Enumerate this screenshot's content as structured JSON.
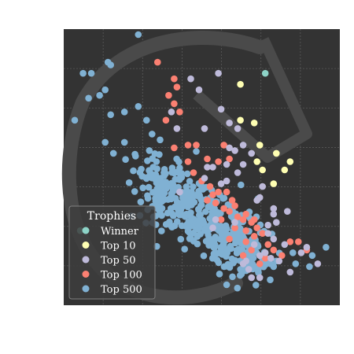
{
  "chart_data": {
    "type": "scatter",
    "title": "",
    "xlabel": "",
    "ylabel": "",
    "grid": true,
    "legend": {
      "title": "Trophies",
      "placement": "lower-left",
      "entries": [
        "Winner",
        "Top 10",
        "Top 50",
        "Top 100",
        "Top 500"
      ]
    },
    "colors": {
      "Winner": "#8dd3c7",
      "Top 10": "#ffffb3",
      "Top 50": "#bebada",
      "Top 100": "#fb8072",
      "Top 500": "#80b1d3",
      "background": "#333333",
      "grid": "#5a5a5a",
      "watermark": "#4a4a4a"
    },
    "series": [
      {
        "name": "Winner",
        "points": [
          [
            0.73,
            0.84
          ],
          [
            0.06,
            0.27
          ]
        ]
      },
      {
        "name": "Top 10",
        "points": [
          [
            0.64,
            0.8
          ],
          [
            0.69,
            0.66
          ],
          [
            0.71,
            0.58
          ],
          [
            0.64,
            0.67
          ],
          [
            0.7,
            0.52
          ],
          [
            0.72,
            0.49
          ],
          [
            0.76,
            0.44
          ],
          [
            0.77,
            0.55
          ],
          [
            0.8,
            0.49
          ],
          [
            0.82,
            0.52
          ]
        ]
      },
      {
        "name": "Top 50",
        "points": [
          [
            0.46,
            0.82
          ],
          [
            0.56,
            0.84
          ],
          [
            0.49,
            0.78
          ],
          [
            0.57,
            0.71
          ],
          [
            0.51,
            0.64
          ],
          [
            0.6,
            0.66
          ],
          [
            0.6,
            0.57
          ],
          [
            0.63,
            0.64
          ],
          [
            0.57,
            0.44
          ],
          [
            0.59,
            0.51
          ],
          [
            0.62,
            0.56
          ],
          [
            0.52,
            0.5
          ],
          [
            0.54,
            0.5
          ],
          [
            0.59,
            0.45
          ],
          [
            0.63,
            0.48
          ],
          [
            0.65,
            0.51
          ],
          [
            0.65,
            0.58
          ],
          [
            0.68,
            0.55
          ],
          [
            0.72,
            0.43
          ],
          [
            0.71,
            0.39
          ],
          [
            0.74,
            0.29
          ],
          [
            0.77,
            0.3
          ],
          [
            0.81,
            0.34
          ],
          [
            0.76,
            0.33
          ],
          [
            0.71,
            0.18
          ],
          [
            0.75,
            0.17
          ],
          [
            0.67,
            0.13
          ],
          [
            0.82,
            0.12
          ],
          [
            0.88,
            0.21
          ],
          [
            0.92,
            0.15
          ],
          [
            0.65,
            0.15
          ],
          [
            0.68,
            0.1
          ],
          [
            0.71,
            0.1
          ],
          [
            0.54,
            0.28
          ],
          [
            0.42,
            0.41
          ],
          [
            0.76,
            0.35
          ],
          [
            0.74,
            0.26
          ],
          [
            0.73,
            0.19
          ],
          [
            0.41,
            0.64
          ],
          [
            0.39,
            0.7
          ],
          [
            0.51,
            0.46
          ],
          [
            0.55,
            0.31
          ],
          [
            0.62,
            0.3
          ],
          [
            0.69,
            0.22
          ],
          [
            0.8,
            0.22
          ],
          [
            0.78,
            0.16
          ],
          [
            0.7,
            0.38
          ],
          [
            0.66,
            0.16
          ],
          [
            0.76,
            0.24
          ],
          [
            0.86,
            0.19
          ]
        ]
      },
      {
        "name": "Top 100",
        "points": [
          [
            0.34,
            0.88
          ],
          [
            0.4,
            0.82
          ],
          [
            0.38,
            0.76
          ],
          [
            0.4,
            0.73
          ],
          [
            0.41,
            0.79
          ],
          [
            0.42,
            0.7
          ],
          [
            0.37,
            0.67
          ],
          [
            0.48,
            0.58
          ],
          [
            0.45,
            0.58
          ],
          [
            0.52,
            0.53
          ],
          [
            0.56,
            0.52
          ],
          [
            0.58,
            0.58
          ],
          [
            0.6,
            0.53
          ],
          [
            0.4,
            0.57
          ],
          [
            0.45,
            0.52
          ],
          [
            0.47,
            0.48
          ],
          [
            0.5,
            0.45
          ],
          [
            0.53,
            0.43
          ],
          [
            0.56,
            0.41
          ],
          [
            0.54,
            0.4
          ],
          [
            0.52,
            0.38
          ],
          [
            0.55,
            0.37
          ],
          [
            0.59,
            0.41
          ],
          [
            0.61,
            0.38
          ],
          [
            0.58,
            0.35
          ],
          [
            0.6,
            0.34
          ],
          [
            0.63,
            0.32
          ],
          [
            0.62,
            0.28
          ],
          [
            0.65,
            0.31
          ],
          [
            0.66,
            0.33
          ],
          [
            0.66,
            0.27
          ],
          [
            0.68,
            0.3
          ],
          [
            0.69,
            0.25
          ],
          [
            0.7,
            0.28
          ],
          [
            0.72,
            0.26
          ],
          [
            0.74,
            0.22
          ],
          [
            0.73,
            0.17
          ],
          [
            0.68,
            0.2
          ],
          [
            0.65,
            0.18
          ],
          [
            0.71,
            0.15
          ],
          [
            0.76,
            0.2
          ],
          [
            0.79,
            0.18
          ],
          [
            0.82,
            0.23
          ],
          [
            0.85,
            0.23
          ],
          [
            0.88,
            0.2
          ],
          [
            0.6,
            0.24
          ],
          [
            0.57,
            0.31
          ],
          [
            0.62,
            0.36
          ],
          [
            0.66,
            0.23
          ],
          [
            0.69,
            0.31
          ]
        ]
      },
      {
        "name": "Top 500",
        "points": []
      }
    ]
  }
}
